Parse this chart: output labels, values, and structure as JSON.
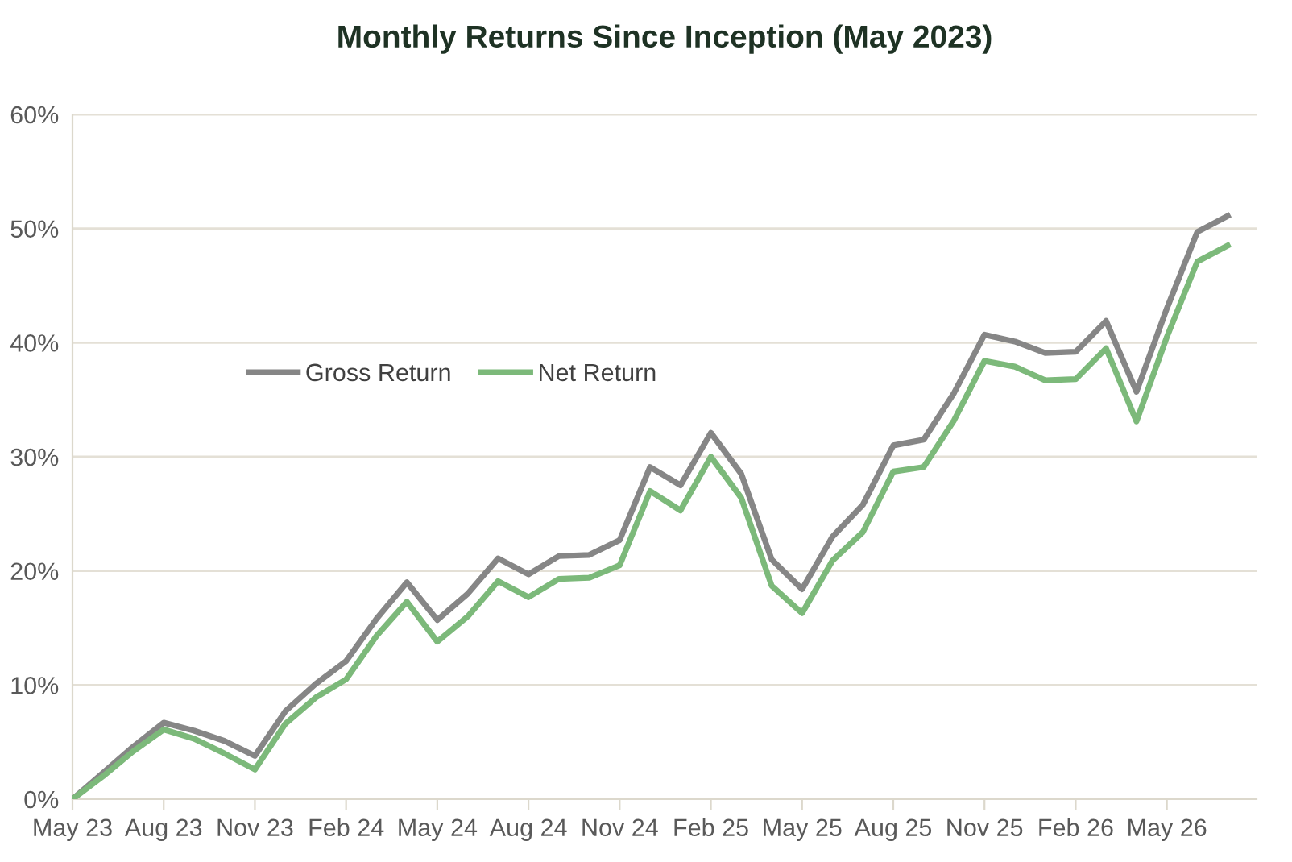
{
  "chart_data": {
    "type": "line",
    "title": "Monthly Returns Since Inception (May 2023)",
    "categories": [
      "May 23",
      null,
      null,
      "Aug 23",
      null,
      null,
      "Nov 23",
      null,
      null,
      "Feb 24",
      null,
      null,
      "May 24",
      null,
      null,
      "Aug 24",
      null,
      null,
      "Nov 24",
      null,
      null,
      "Feb 25",
      null,
      null,
      "May 25",
      null,
      null,
      "Aug 25",
      null,
      null,
      "Nov 25",
      null,
      null,
      "Feb 26",
      null,
      null,
      "May 26",
      null,
      null
    ],
    "series": [
      {
        "name": "Gross Return",
        "color": "#868686",
        "values": [
          0,
          2.3,
          4.6,
          6.7,
          6.0,
          5.1,
          3.8,
          7.7,
          10.1,
          12.1,
          15.8,
          19.0,
          15.7,
          18.0,
          21.1,
          19.7,
          21.3,
          21.4,
          22.7,
          29.1,
          27.5,
          32.1,
          28.5,
          21.0,
          18.4,
          23.0,
          25.8,
          31.0,
          31.5,
          35.6,
          40.7,
          40.1,
          39.1,
          39.2,
          41.9,
          35.7,
          43.0,
          49.7,
          51.1
        ]
      },
      {
        "name": "Net Return",
        "color": "#7cb97a",
        "values": [
          0,
          2.0,
          4.2,
          6.1,
          5.3,
          4.0,
          2.6,
          6.6,
          8.9,
          10.5,
          14.3,
          17.3,
          13.8,
          16.0,
          19.1,
          17.7,
          19.3,
          19.4,
          20.5,
          27.0,
          25.3,
          30.0,
          26.4,
          18.7,
          16.3,
          20.9,
          23.4,
          28.7,
          29.1,
          33.2,
          38.4,
          37.9,
          36.7,
          36.8,
          39.5,
          33.1,
          40.5,
          47.1,
          48.5
        ]
      }
    ],
    "ylim": [
      0,
      60
    ],
    "yticks": [
      {
        "value": 0,
        "label": "0%"
      },
      {
        "value": 10,
        "label": "10%"
      },
      {
        "value": 20,
        "label": "20%"
      },
      {
        "value": 30,
        "label": "30%"
      },
      {
        "value": 40,
        "label": "40%"
      },
      {
        "value": 50,
        "label": "50%"
      },
      {
        "value": 60,
        "label": "60%"
      }
    ],
    "grid": "y",
    "legend": "center left",
    "marker": "none",
    "line_style": "solid"
  }
}
